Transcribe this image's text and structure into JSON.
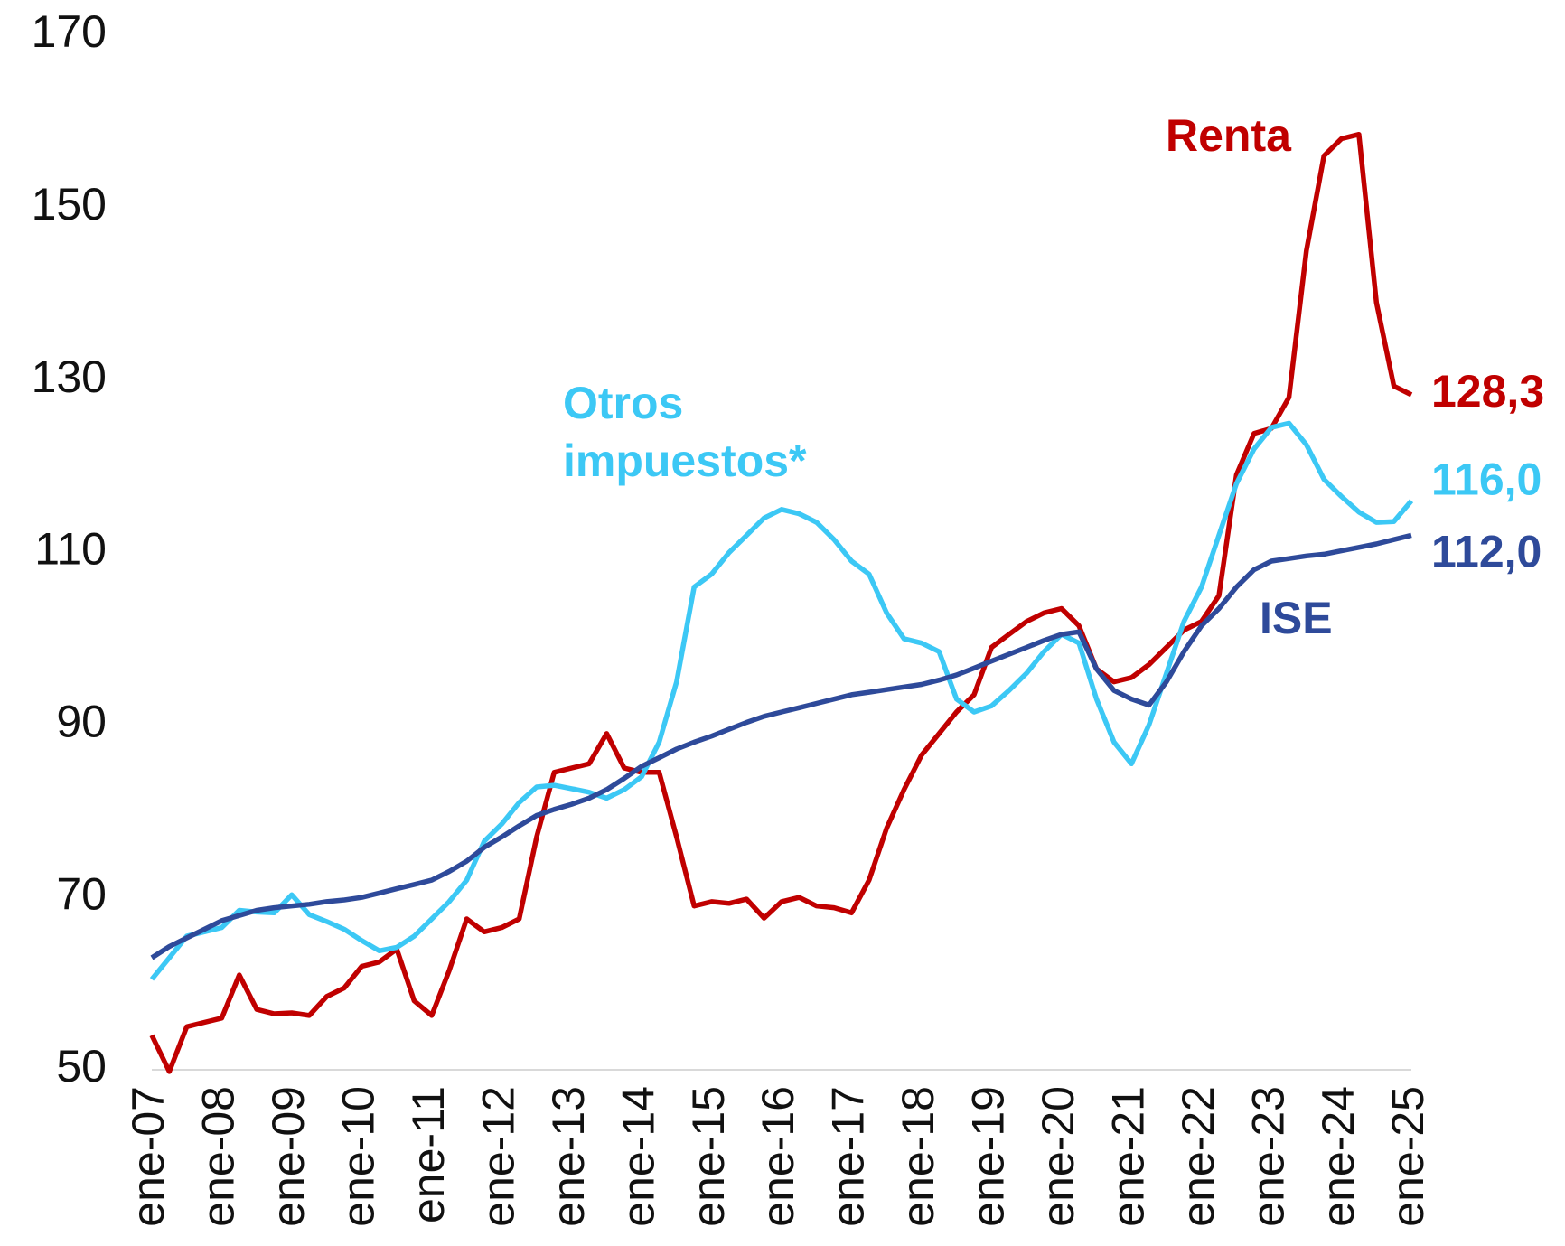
{
  "chart_data": {
    "type": "line",
    "categories": [
      "ene-07",
      null,
      null,
      null,
      "ene-08",
      null,
      null,
      null,
      "ene-09",
      null,
      null,
      null,
      "ene-10",
      null,
      null,
      null,
      "ene-11",
      null,
      null,
      null,
      "ene-12",
      null,
      null,
      null,
      "ene-13",
      null,
      null,
      null,
      "ene-14",
      null,
      null,
      null,
      "ene-15",
      null,
      null,
      null,
      "ene-16",
      null,
      null,
      null,
      "ene-17",
      null,
      null,
      null,
      "ene-18",
      null,
      null,
      null,
      "ene-19",
      null,
      null,
      null,
      "ene-20",
      null,
      null,
      null,
      "ene-21",
      null,
      null,
      null,
      "ene-22",
      null,
      null,
      null,
      "ene-23",
      null,
      null,
      null,
      "ene-24",
      null,
      null,
      null,
      "ene-25"
    ],
    "series": [
      {
        "name": "Renta",
        "color": "#c00000",
        "values": [
          54,
          49.8,
          55,
          55.5,
          56,
          61,
          57,
          56.5,
          56.6,
          56.3,
          58.5,
          59.5,
          62,
          62.5,
          64,
          58,
          56.3,
          61.5,
          67.5,
          66,
          66.5,
          67.5,
          77,
          84.5,
          85,
          85.5,
          89,
          85,
          84.5,
          84.5,
          77,
          69,
          69.5,
          69.3,
          69.8,
          67.6,
          69.5,
          70,
          69,
          68.8,
          68.2,
          72,
          78,
          82.5,
          86.5,
          89,
          91.5,
          93.5,
          99,
          100.5,
          102,
          103,
          103.5,
          101.5,
          96.5,
          95,
          95.5,
          97,
          99,
          101,
          102,
          105,
          119,
          123.8,
          124.4,
          128,
          145,
          156,
          158,
          158.5,
          139,
          129.3,
          128.3
        ],
        "value_labels": [
          null,
          null,
          null,
          null,
          null,
          null,
          null,
          null,
          null,
          null,
          null,
          null,
          null,
          null,
          null,
          null,
          null,
          null,
          null,
          null,
          null,
          null,
          null,
          null,
          null,
          null,
          null,
          null,
          null,
          null,
          null,
          null,
          null,
          null,
          null,
          null,
          null,
          null,
          null,
          null,
          null,
          null,
          null,
          null,
          null,
          null,
          null,
          null,
          null,
          null,
          null,
          null,
          null,
          null,
          null,
          null,
          null,
          null,
          null,
          null,
          null,
          null,
          null,
          null,
          null,
          null,
          null,
          null,
          null,
          null,
          null,
          null,
          "128,3"
        ]
      },
      {
        "name": "Otros impuestos*",
        "color": "#3cc8f5",
        "values": [
          60.5,
          63,
          65.5,
          66,
          66.5,
          68.5,
          68.3,
          68.2,
          70.3,
          68,
          67.2,
          66.3,
          65,
          63.8,
          64.2,
          65.5,
          67.5,
          69.5,
          72,
          76.5,
          78.5,
          81,
          82.8,
          83,
          82.6,
          82.2,
          81.5,
          82.5,
          84,
          88,
          95,
          106,
          107.5,
          110,
          112,
          114,
          115,
          114.5,
          113.5,
          111.5,
          109,
          107.5,
          103,
          100,
          99.5,
          98.5,
          93,
          91.5,
          92.2,
          94,
          96,
          98.5,
          100.5,
          99.5,
          93,
          88,
          85.5,
          90,
          96,
          102,
          106,
          112,
          118,
          122,
          124.5,
          125,
          122.5,
          118.5,
          116.5,
          114.7,
          113.5,
          113.6,
          116.0
        ],
        "value_labels": [
          null,
          null,
          null,
          null,
          null,
          null,
          null,
          null,
          null,
          null,
          null,
          null,
          null,
          null,
          null,
          null,
          null,
          null,
          null,
          null,
          null,
          null,
          null,
          null,
          null,
          null,
          null,
          null,
          null,
          null,
          null,
          null,
          null,
          null,
          null,
          null,
          null,
          null,
          null,
          null,
          null,
          null,
          null,
          null,
          null,
          null,
          null,
          null,
          null,
          null,
          null,
          null,
          null,
          null,
          null,
          null,
          null,
          null,
          null,
          null,
          null,
          null,
          null,
          null,
          null,
          null,
          null,
          null,
          null,
          null,
          null,
          null,
          "116,0"
        ]
      },
      {
        "name": "ISE",
        "color": "#2e4a9a",
        "values": [
          63.0,
          64.3,
          65.3,
          66.3,
          67.3,
          67.9,
          68.5,
          68.8,
          69.0,
          69.2,
          69.5,
          69.7,
          70.0,
          70.5,
          71.0,
          71.5,
          72.0,
          73.0,
          74.2,
          75.8,
          77.0,
          78.3,
          79.5,
          80.2,
          80.8,
          81.5,
          82.5,
          83.8,
          85.2,
          86.2,
          87.2,
          88.0,
          88.7,
          89.5,
          90.3,
          91.0,
          91.5,
          92.0,
          92.5,
          93.0,
          93.5,
          93.8,
          94.1,
          94.4,
          94.7,
          95.2,
          95.8,
          96.6,
          97.4,
          98.2,
          99.0,
          99.8,
          100.5,
          100.8,
          96.5,
          94.0,
          93.0,
          92.3,
          95.0,
          98.5,
          101.5,
          103.5,
          106.0,
          108.0,
          109.0,
          109.3,
          109.6,
          109.8,
          110.2,
          110.6,
          111.0,
          111.5,
          112.0
        ],
        "value_labels": [
          null,
          null,
          null,
          null,
          null,
          null,
          null,
          null,
          null,
          null,
          null,
          null,
          null,
          null,
          null,
          null,
          null,
          null,
          null,
          null,
          null,
          null,
          null,
          null,
          null,
          null,
          null,
          null,
          null,
          null,
          null,
          null,
          null,
          null,
          null,
          null,
          null,
          null,
          null,
          null,
          null,
          null,
          null,
          null,
          null,
          null,
          null,
          null,
          null,
          null,
          null,
          null,
          null,
          null,
          null,
          null,
          null,
          null,
          null,
          null,
          null,
          null,
          null,
          null,
          null,
          null,
          null,
          null,
          null,
          null,
          null,
          null,
          "112,0"
        ]
      }
    ],
    "ylim": [
      50,
      170
    ],
    "yticks": [
      50,
      70,
      90,
      110,
      130,
      150,
      170
    ],
    "grid": false
  }
}
